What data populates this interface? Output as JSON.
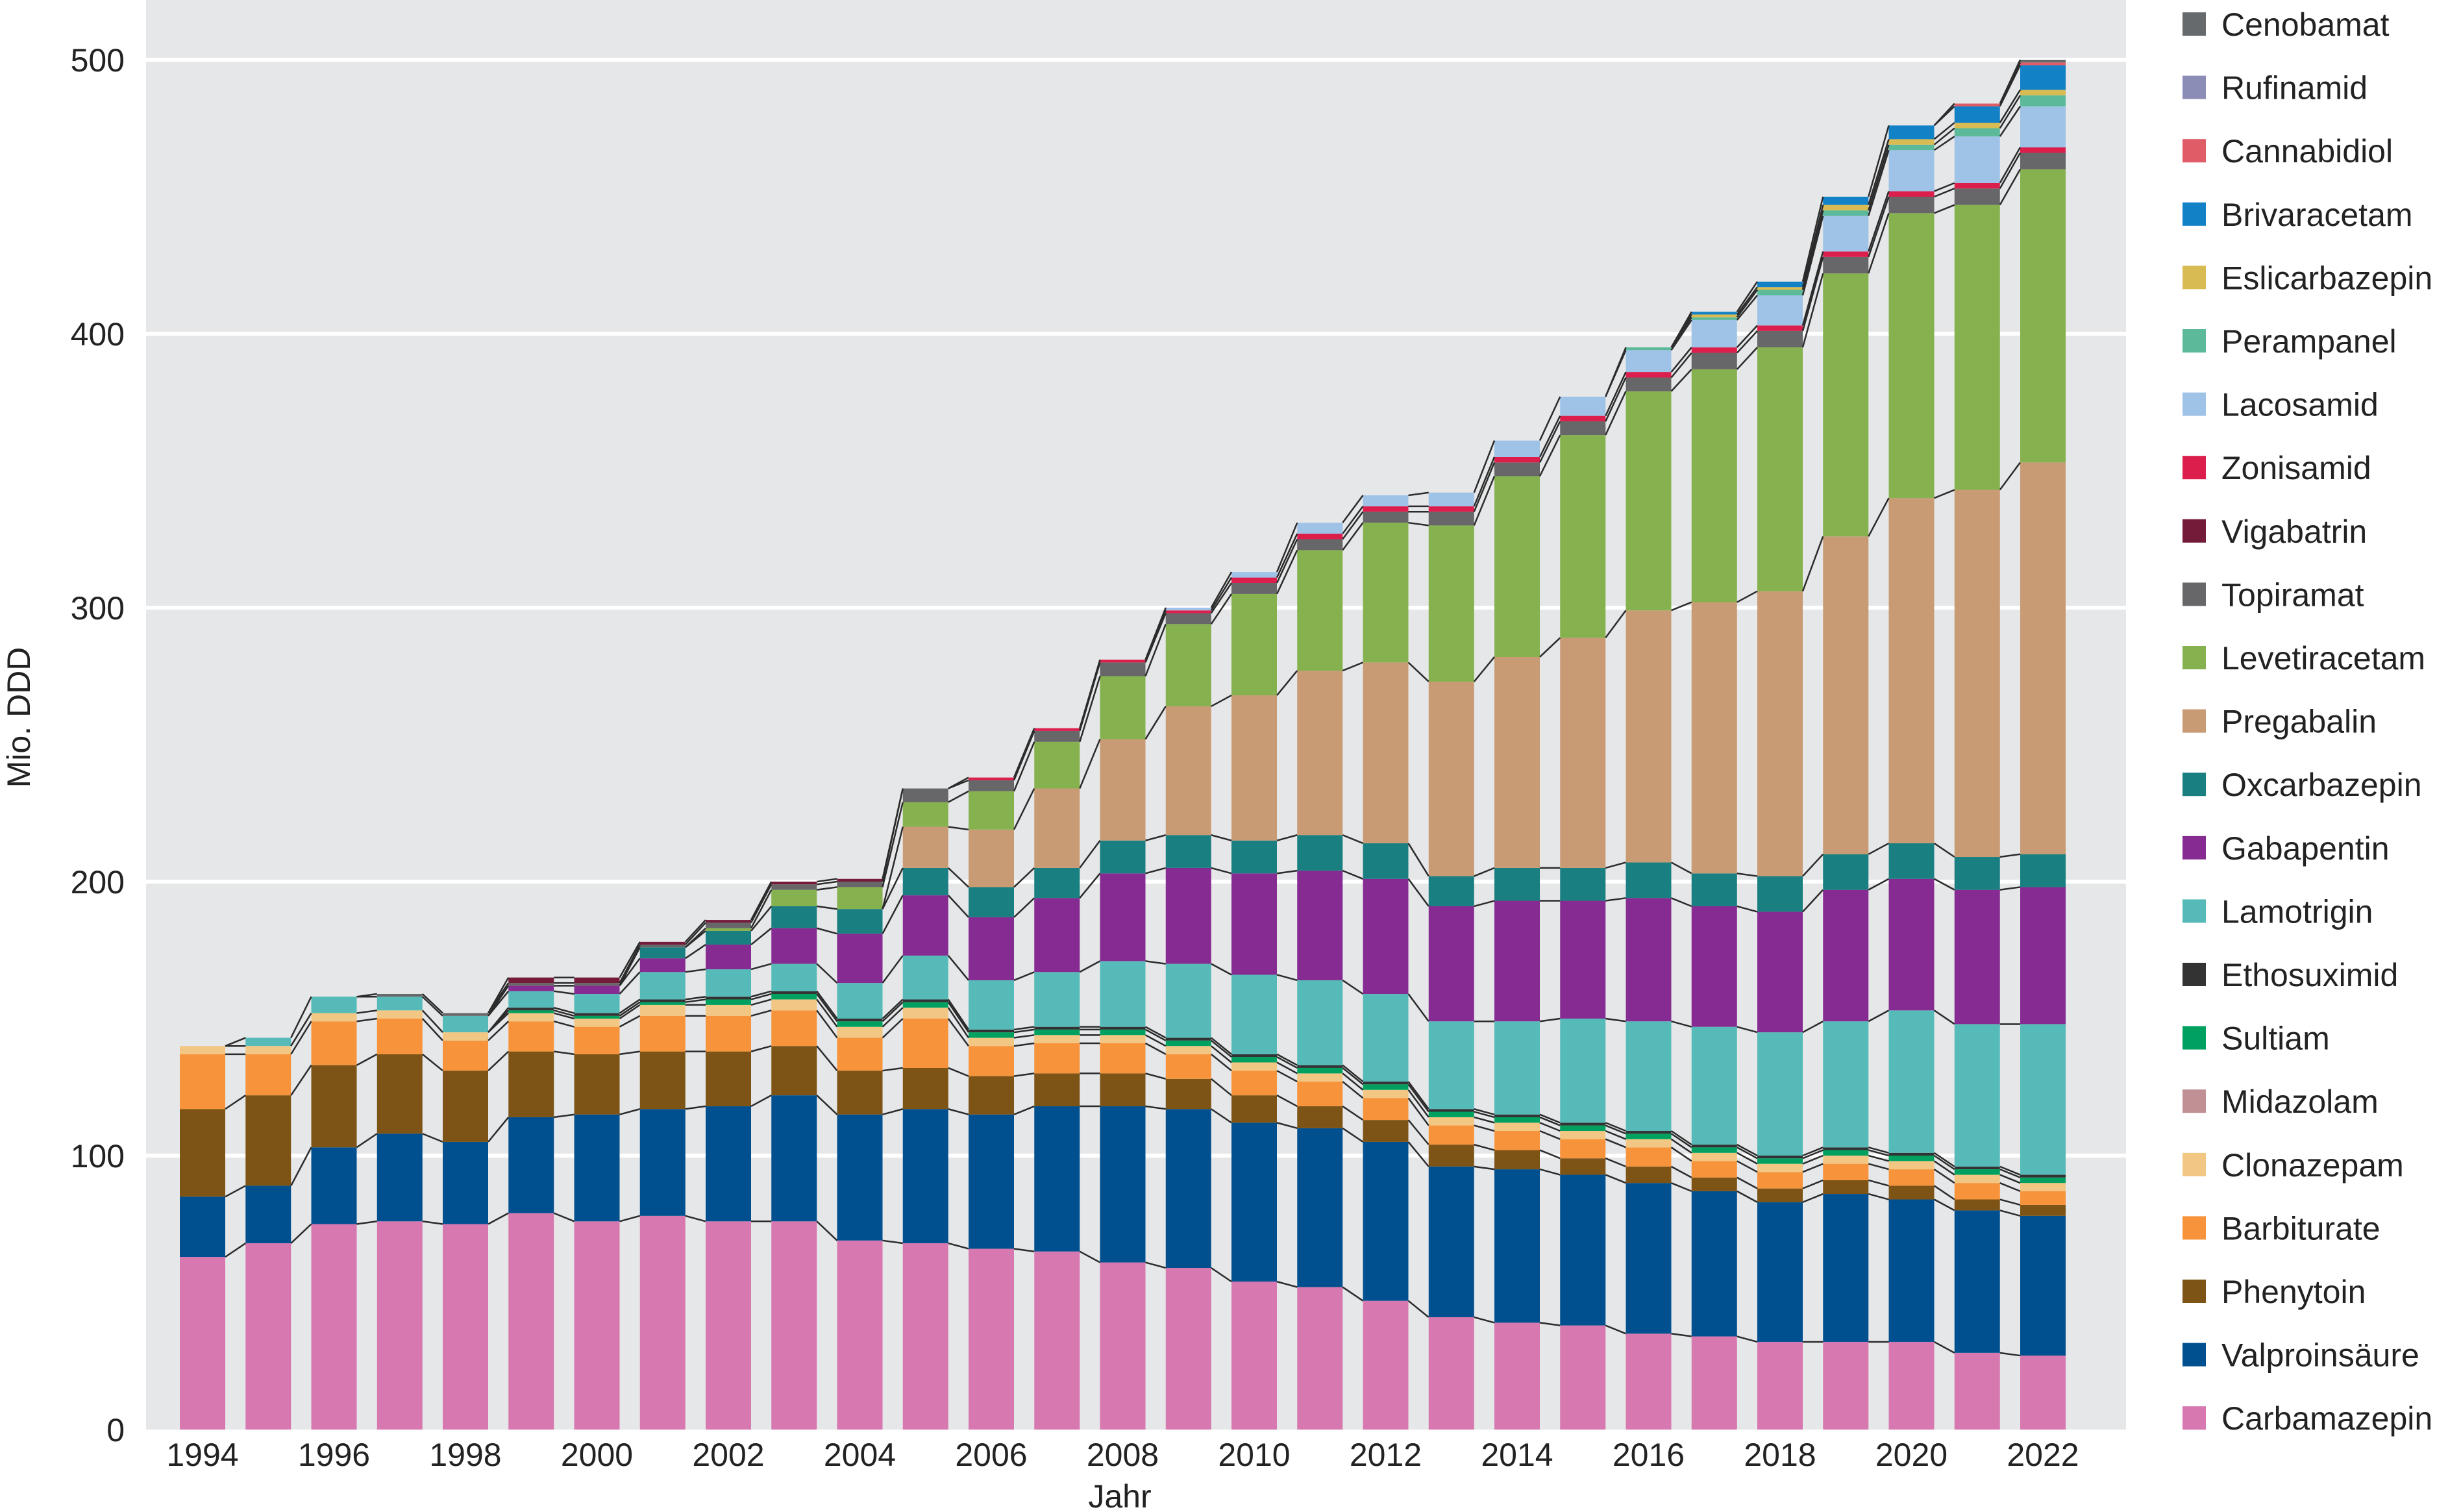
{
  "chart_data": {
    "type": "bar",
    "stacked": true,
    "title": "",
    "xlabel": "Jahr",
    "ylabel": "Mio. DDD",
    "ylim": [
      0,
      520
    ],
    "yticks": [
      0,
      100,
      200,
      300,
      400,
      500
    ],
    "xtick_labels": [
      "1994",
      "1996",
      "1998",
      "2000",
      "2002",
      "2004",
      "2006",
      "2008",
      "2010",
      "2012",
      "2014",
      "2016",
      "2018",
      "2020",
      "2022"
    ],
    "grid": true,
    "legend_position": "right",
    "categories": [
      "1994",
      "1995",
      "1996",
      "1997",
      "1998",
      "1999",
      "2000",
      "2001",
      "2002",
      "2003",
      "2004",
      "2005",
      "2006",
      "2007",
      "2008",
      "2009",
      "2010",
      "2011",
      "2012",
      "2013",
      "2014",
      "2015",
      "2016",
      "2017",
      "2018",
      "2019",
      "2020",
      "2021",
      "2022"
    ],
    "series": [
      {
        "name": "Carbamazepin",
        "color": "#d778b0",
        "values": [
          63,
          68,
          75,
          76,
          75,
          79,
          76,
          78,
          76,
          76,
          69,
          68,
          66,
          65,
          61,
          59,
          54,
          52,
          47,
          41,
          39,
          38,
          35,
          34,
          32,
          32,
          32,
          28,
          27
        ]
      },
      {
        "name": "Valproinsäure",
        "color": "#00508f",
        "values": [
          22,
          21,
          28,
          32,
          30,
          35,
          39,
          39,
          42,
          46,
          46,
          49,
          49,
          53,
          57,
          58,
          58,
          58,
          58,
          55,
          56,
          55,
          55,
          53,
          51,
          54,
          52,
          52,
          51
        ]
      },
      {
        "name": "Phenytoin",
        "color": "#7d5416",
        "values": [
          32,
          33,
          30,
          29,
          26,
          24,
          22,
          21,
          20,
          18,
          16,
          15,
          14,
          12,
          12,
          11,
          10,
          8,
          8,
          8,
          7,
          6,
          6,
          5,
          5,
          5,
          5,
          4,
          4
        ]
      },
      {
        "name": "Barbiturate",
        "color": "#f7943b",
        "values": [
          20,
          15,
          16,
          13,
          11,
          11,
          10,
          13,
          13,
          13,
          12,
          18,
          11,
          11,
          11,
          9,
          9,
          9,
          8,
          7,
          7,
          7,
          7,
          6,
          6,
          6,
          6,
          6,
          5
        ]
      },
      {
        "name": "Clonazepam",
        "color": "#f2c783",
        "values": [
          3,
          3,
          3,
          3,
          3,
          3,
          3,
          4,
          4,
          4,
          4,
          4,
          3,
          3,
          3,
          3,
          3,
          3,
          3,
          3,
          3,
          3,
          3,
          3,
          3,
          3,
          3,
          3,
          3
        ]
      },
      {
        "name": "Midazolam",
        "color": "#c09095",
        "values": [
          0,
          0,
          0,
          0,
          0,
          0,
          0,
          0,
          0,
          0,
          0,
          0,
          0,
          0,
          0,
          0,
          0,
          0,
          0,
          0,
          0,
          0,
          0,
          0,
          0,
          0,
          0,
          0,
          0
        ]
      },
      {
        "name": "Sultiam",
        "color": "#00a160",
        "values": [
          0,
          0,
          0,
          0,
          0,
          1,
          1,
          1,
          2,
          2,
          2,
          2,
          2,
          2,
          2,
          2,
          2,
          2,
          2,
          2,
          2,
          2,
          2,
          2,
          2,
          2,
          2,
          2,
          2
        ]
      },
      {
        "name": "Ethosuximid",
        "color": "#333333",
        "values": [
          0,
          0,
          0,
          0,
          0,
          1,
          1,
          1,
          1,
          1,
          1,
          1,
          1,
          1,
          1,
          1,
          1,
          1,
          1,
          1,
          1,
          1,
          1,
          1,
          1,
          1,
          1,
          1,
          1
        ]
      },
      {
        "name": "Lamotrigin",
        "color": "#56bbb8",
        "values": [
          0,
          3,
          6,
          5,
          6,
          6,
          7,
          10,
          10,
          10,
          13,
          16,
          18,
          20,
          24,
          27,
          29,
          31,
          32,
          32,
          34,
          38,
          40,
          43,
          45,
          46,
          52,
          52,
          55
        ]
      },
      {
        "name": "Gabapentin",
        "color": "#862b91",
        "values": [
          0,
          0,
          0,
          0,
          0,
          2,
          3,
          5,
          9,
          13,
          18,
          22,
          23,
          27,
          32,
          35,
          37,
          40,
          42,
          42,
          44,
          43,
          45,
          44,
          44,
          48,
          48,
          49,
          50
        ]
      },
      {
        "name": "Oxcarbazepin",
        "color": "#1a7f80",
        "values": [
          0,
          0,
          0,
          0,
          0,
          0,
          0,
          4,
          5,
          8,
          9,
          10,
          11,
          11,
          12,
          12,
          12,
          13,
          13,
          11,
          12,
          12,
          13,
          12,
          13,
          13,
          13,
          12,
          12
        ]
      },
      {
        "name": "Pregabalin",
        "color": "#c89b74",
        "values": [
          0,
          0,
          0,
          0,
          0,
          0,
          0,
          0,
          0,
          0,
          0,
          15,
          21,
          29,
          37,
          47,
          53,
          60,
          66,
          71,
          77,
          84,
          92,
          99,
          104,
          116,
          126,
          134,
          143
        ]
      },
      {
        "name": "Levetiracetam",
        "color": "#86b14f",
        "values": [
          0,
          0,
          0,
          0,
          0,
          0,
          0,
          0,
          1,
          6,
          8,
          9,
          14,
          17,
          23,
          30,
          37,
          44,
          51,
          57,
          66,
          74,
          80,
          85,
          89,
          96,
          104,
          104,
          107
        ]
      },
      {
        "name": "Topiramat",
        "color": "#676769",
        "values": [
          0,
          0,
          0,
          1,
          1,
          1,
          1,
          1,
          2,
          2,
          2,
          5,
          4,
          4,
          5,
          4,
          4,
          4,
          4,
          5,
          5,
          5,
          5,
          6,
          6,
          6,
          6,
          6,
          6
        ]
      },
      {
        "name": "Vigabatrin",
        "color": "#751b3a",
        "values": [
          0,
          0,
          0,
          0,
          0,
          2,
          2,
          1,
          1,
          1,
          1,
          0,
          0,
          0,
          0,
          0,
          0,
          0,
          0,
          0,
          0,
          0,
          0,
          0,
          0,
          0,
          0,
          0,
          0
        ]
      },
      {
        "name": "Zonisamid",
        "color": "#db1e4b",
        "values": [
          0,
          0,
          0,
          0,
          0,
          0,
          0,
          0,
          0,
          0,
          0,
          0,
          1,
          1,
          1,
          1,
          2,
          2,
          2,
          2,
          2,
          2,
          2,
          2,
          2,
          2,
          2,
          2,
          2
        ]
      },
      {
        "name": "Lacosamid",
        "color": "#9fc3e7",
        "values": [
          0,
          0,
          0,
          0,
          0,
          0,
          0,
          0,
          0,
          0,
          0,
          0,
          0,
          0,
          0,
          1,
          2,
          4,
          4,
          5,
          6,
          7,
          8,
          10,
          11,
          13,
          15,
          17,
          15
        ]
      },
      {
        "name": "Perampanel",
        "color": "#5cb99a",
        "values": [
          0,
          0,
          0,
          0,
          0,
          0,
          0,
          0,
          0,
          0,
          0,
          0,
          0,
          0,
          0,
          0,
          0,
          0,
          0,
          0,
          0,
          0,
          1,
          1,
          2,
          2,
          2,
          3,
          4
        ]
      },
      {
        "name": "Eslicarbazepin",
        "color": "#d8bb52",
        "values": [
          0,
          0,
          0,
          0,
          0,
          0,
          0,
          0,
          0,
          0,
          0,
          0,
          0,
          0,
          0,
          0,
          0,
          0,
          0,
          0,
          0,
          0,
          0,
          1,
          1,
          2,
          2,
          2,
          2
        ]
      },
      {
        "name": "Brivaracetam",
        "color": "#1281c6",
        "values": [
          0,
          0,
          0,
          0,
          0,
          0,
          0,
          0,
          0,
          0,
          0,
          0,
          0,
          0,
          0,
          0,
          0,
          0,
          0,
          0,
          0,
          0,
          0,
          1,
          2,
          3,
          5,
          6,
          9
        ]
      },
      {
        "name": "Cannabidiol",
        "color": "#e05c67",
        "values": [
          0,
          0,
          0,
          0,
          0,
          0,
          0,
          0,
          0,
          0,
          0,
          0,
          0,
          0,
          0,
          0,
          0,
          0,
          0,
          0,
          0,
          0,
          0,
          0,
          0,
          0,
          0,
          1,
          1
        ]
      },
      {
        "name": "Rufinamid",
        "color": "#8b8db7",
        "values": [
          0,
          0,
          0,
          0,
          0,
          0,
          0,
          0,
          0,
          0,
          0,
          0,
          0,
          0,
          0,
          0,
          0,
          0,
          0,
          0,
          0,
          0,
          0,
          0,
          0,
          0,
          0,
          0,
          0
        ]
      },
      {
        "name": "Cenobamat",
        "color": "#666a6d",
        "values": [
          0,
          0,
          0,
          0,
          0,
          0,
          0,
          0,
          0,
          0,
          0,
          0,
          0,
          0,
          0,
          0,
          0,
          0,
          0,
          0,
          0,
          0,
          0,
          0,
          0,
          0,
          0,
          0,
          1
        ]
      }
    ]
  }
}
